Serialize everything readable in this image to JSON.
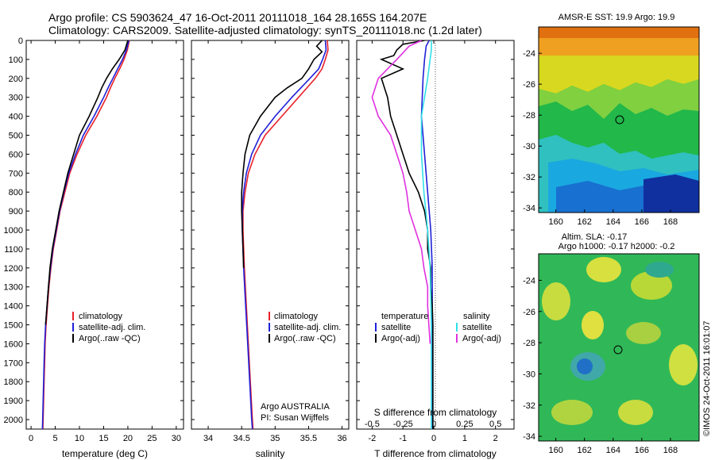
{
  "title": {
    "line1": "Argo profile: CS 5903624_47 16-Oct-2011 20111018_164 28.165S 164.207E",
    "line2": "Climatology: CARS2009. Satellite-adjusted climatology: synTS_20111018.nc (1.2d later)"
  },
  "depth_ticks": [
    "0",
    "100",
    "200",
    "300",
    "400",
    "500",
    "600",
    "700",
    "800",
    "900",
    "1000",
    "1100",
    "1200",
    "1300",
    "1400",
    "1500",
    "1600",
    "1700",
    "1800",
    "1900",
    "2000"
  ],
  "colors": {
    "climatology": "#e8202a",
    "satellite": "#2020d8",
    "argo": "#000000",
    "sat_s": "#30e0e8",
    "argo_s": "#e030e0",
    "zero_line": "#555555"
  },
  "chart_data": [
    {
      "type": "line",
      "xlabel": "temperature (deg C)",
      "xticks": [
        "0",
        "5",
        "10",
        "15",
        "20",
        "25",
        "30"
      ],
      "xlim": [
        -1,
        31.5
      ],
      "ylim": [
        2050,
        0
      ],
      "legend": {
        "placement": "lower-center",
        "entries": [
          "climatology",
          "satellite-adj. clim.",
          "Argo(..raw -QC)"
        ]
      },
      "series": [
        {
          "name": "climatology",
          "color_key": "climatology",
          "depth": [
            0,
            50,
            100,
            150,
            200,
            250,
            300,
            400,
            500,
            600,
            700,
            800,
            900,
            1000,
            1100,
            1200,
            1300,
            1400,
            1500,
            1600,
            1700,
            1800,
            1900,
            2000,
            2050
          ],
          "values": [
            20.3,
            19.9,
            19.2,
            18.3,
            17.3,
            16.4,
            15.6,
            13.6,
            11.3,
            9.5,
            8.0,
            7.0,
            6.0,
            5.3,
            4.6,
            4.1,
            3.7,
            3.4,
            3.1,
            2.9,
            2.8,
            2.7,
            2.6,
            2.5,
            2.45
          ]
        },
        {
          "name": "satellite-adj. clim.",
          "color_key": "satellite",
          "depth": [
            0,
            50,
            100,
            150,
            200,
            250,
            300,
            400,
            500,
            600,
            700,
            800,
            900,
            1000,
            1100,
            1200,
            1300,
            1400,
            1500,
            1600,
            1700,
            1800,
            1900,
            2000,
            2050
          ],
          "values": [
            20.2,
            19.7,
            18.9,
            17.9,
            16.9,
            15.9,
            15.0,
            13.0,
            10.8,
            9.2,
            7.8,
            6.8,
            5.9,
            5.2,
            4.5,
            4.0,
            3.6,
            3.3,
            3.0,
            2.8,
            2.7,
            2.6,
            2.5,
            2.4,
            2.35
          ]
        },
        {
          "name": "Argo(..raw -QC)",
          "color_key": "argo",
          "depth": [
            0,
            50,
            100,
            150,
            200,
            250,
            300,
            400,
            500,
            600,
            700,
            800,
            900,
            1000,
            1100,
            1200,
            1300,
            1400,
            1500
          ],
          "values": [
            20.0,
            19.4,
            18.2,
            16.8,
            15.6,
            14.6,
            13.8,
            12.0,
            10.0,
            8.8,
            7.6,
            6.7,
            5.8,
            5.1,
            4.4,
            3.9,
            3.6,
            3.3,
            3.0
          ]
        }
      ]
    },
    {
      "type": "line",
      "xlabel": "salinity",
      "xticks": [
        "34",
        "34.5",
        "35",
        "35.5",
        "36"
      ],
      "xlim": [
        33.75,
        36.1
      ],
      "ylim": [
        2050,
        0
      ],
      "legend": {
        "placement": "lower-right",
        "entries": [
          "climatology",
          "satellite-adj. clim.",
          "Argo(..raw -QC)"
        ]
      },
      "annotation": [
        "Argo AUSTRALIA",
        "PI: Susan Wijffels"
      ],
      "series": [
        {
          "name": "climatology",
          "color_key": "climatology",
          "depth": [
            0,
            50,
            100,
            150,
            200,
            300,
            400,
            500,
            600,
            700,
            800,
            900,
            1000,
            1200,
            1400,
            1600,
            1800,
            2000,
            2050
          ],
          "values": [
            35.78,
            35.79,
            35.75,
            35.7,
            35.6,
            35.35,
            35.1,
            34.85,
            34.7,
            34.6,
            34.55,
            34.52,
            34.52,
            34.54,
            34.57,
            34.6,
            34.63,
            34.66,
            34.67
          ]
        },
        {
          "name": "satellite-adj. clim.",
          "color_key": "satellite",
          "depth": [
            0,
            50,
            100,
            150,
            200,
            300,
            400,
            500,
            600,
            700,
            800,
            900,
            1000,
            1200,
            1400,
            1600,
            1800,
            2000,
            2050
          ],
          "values": [
            35.75,
            35.76,
            35.71,
            35.65,
            35.52,
            35.25,
            35.0,
            34.78,
            34.65,
            34.57,
            34.53,
            34.51,
            34.51,
            34.53,
            34.56,
            34.59,
            34.62,
            34.65,
            34.66
          ]
        },
        {
          "name": "Argo(..raw -QC)",
          "color_key": "argo",
          "depth": [
            0,
            30,
            60,
            100,
            150,
            200,
            250,
            300,
            400,
            500,
            600,
            700,
            800,
            900,
            1000,
            1100,
            1200
          ],
          "values": [
            35.7,
            35.62,
            35.7,
            35.58,
            35.5,
            35.4,
            35.18,
            35.0,
            34.78,
            34.62,
            34.55,
            34.52,
            34.5,
            34.5,
            34.51,
            34.52,
            34.53
          ]
        }
      ]
    },
    {
      "type": "line",
      "xlabel": "T difference from climatology",
      "xticks": [
        "-2",
        "-1",
        "0",
        "1",
        "2"
      ],
      "xlim": [
        -2.5,
        2.6
      ],
      "top_xlabel": "S difference from climatology",
      "top_xticks": [
        "-0.5",
        "-0.25",
        "0",
        "0.25",
        "0.5"
      ],
      "ylim": [
        2050,
        0
      ],
      "legend": {
        "placement": "lower-center",
        "headers": [
          "temperature",
          "salinity"
        ],
        "entries": [
          "satellite",
          "Argo(-adj)",
          "satellite",
          "Argo(-adj)"
        ]
      },
      "series": [
        {
          "name": "satellite",
          "color_key": "satellite",
          "depth": [
            0,
            30,
            100,
            200,
            400,
            600,
            800,
            1000,
            1200,
            1500,
            2000,
            2050
          ],
          "values": [
            -0.15,
            -0.25,
            -0.3,
            -0.35,
            -0.4,
            -0.3,
            -0.2,
            -0.1,
            -0.05,
            -0.05,
            -0.05,
            -0.05
          ]
        },
        {
          "name": "Argo(-adj)",
          "color_key": "argo",
          "depth": [
            0,
            20,
            50,
            80,
            100,
            150,
            200,
            300,
            400,
            500,
            600,
            700,
            800,
            900,
            1000,
            1100,
            1200,
            1300,
            1400,
            1500,
            2050
          ],
          "values": [
            -0.3,
            -1.0,
            -1.2,
            -1.3,
            -1.7,
            -1.0,
            -1.7,
            -1.5,
            -1.4,
            -1.2,
            -1.0,
            -0.8,
            -0.5,
            -0.3,
            -0.2,
            -0.2,
            -0.1,
            -0.1,
            -0.05,
            -0.03,
            -0.03
          ]
        },
        {
          "name": "satellite",
          "color_key": "sat_s",
          "depth": [
            0,
            50,
            100,
            200,
            400,
            600,
            800,
            1000,
            1200,
            1500,
            2000,
            2050
          ],
          "values": [
            -0.02,
            -0.02,
            -0.03,
            -0.05,
            -0.1,
            -0.1,
            -0.08,
            -0.05,
            -0.03,
            -0.02,
            -0.02,
            -0.02
          ]
        },
        {
          "name": "Argo(-adj)",
          "color_key": "argo_s",
          "depth": [
            0,
            30,
            100,
            200,
            300,
            400,
            500,
            600,
            700,
            800,
            900,
            1000,
            1100,
            1200,
            1300,
            1400,
            1500,
            1600
          ],
          "values": [
            -0.1,
            -0.2,
            -0.3,
            -0.45,
            -0.5,
            -0.45,
            -0.35,
            -0.3,
            -0.25,
            -0.22,
            -0.2,
            -0.15,
            -0.1,
            -0.08,
            -0.05,
            -0.05,
            -0.04,
            -0.03
          ]
        }
      ]
    },
    {
      "type": "heatmap",
      "title": "AMSR-E SST: 19.9 Argo: 19.9",
      "xticks": [
        "160",
        "162",
        "164",
        "166",
        "168"
      ],
      "yticks": [
        "-24",
        "-26",
        "-28",
        "-30",
        "-32",
        "-34"
      ],
      "xlim": [
        158.8,
        170.0
      ],
      "ylim": [
        -34.3,
        -22.3
      ],
      "marker": {
        "lon": 164.207,
        "lat": -28.165
      }
    },
    {
      "type": "heatmap",
      "title": "Altim. SLA: -0.17",
      "subtitle": "Argo h1000: -0.17 h2000: -0.2",
      "xticks": [
        "160",
        "162",
        "164",
        "166",
        "168"
      ],
      "yticks": [
        "-24",
        "-26",
        "-28",
        "-30",
        "-32",
        "-34"
      ],
      "xlim": [
        158.8,
        170.0
      ],
      "ylim": [
        -34.3,
        -22.3
      ],
      "marker": {
        "lon": 164.207,
        "lat": -28.165
      }
    }
  ],
  "stamp": "©IMOS 24-Oct-2011 16:01:07"
}
